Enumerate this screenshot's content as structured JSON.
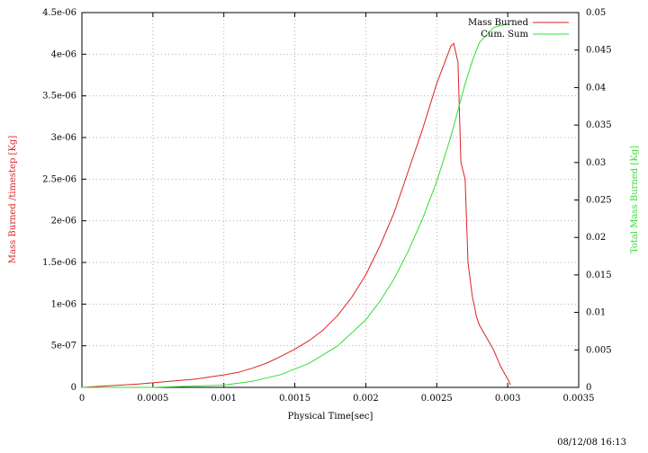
{
  "chart_data": {
    "type": "line",
    "xlabel": "Physical Time[sec]",
    "ylabel_left": "Mass Burned /timestep [Kg]",
    "ylabel_right": "Total Mass Burned [Kg]",
    "xlim": [
      0,
      0.0035
    ],
    "ylim_left": [
      0,
      4.5e-06
    ],
    "ylim_right": [
      0,
      0.05
    ],
    "xticks": [
      "0",
      "0.0005",
      "0.001",
      "0.0015",
      "0.002",
      "0.0025",
      "0.003",
      "0.0035"
    ],
    "yticks_left": [
      "0",
      "5e-07",
      "1e-06",
      "1.5e-06",
      "2e-06",
      "2.5e-06",
      "3e-06",
      "3.5e-06",
      "4e-06",
      "4.5e-06"
    ],
    "yticks_right": [
      "0",
      "0.005",
      "0.01",
      "0.015",
      "0.02",
      "0.025",
      "0.03",
      "0.035",
      "0.04",
      "0.045",
      "0.05"
    ],
    "grid": true,
    "legend_position": "top-right",
    "series": [
      {
        "name": "Mass Burned",
        "axis": "left",
        "color": "#dd2222",
        "x": [
          0.0,
          0.0002,
          0.0004,
          0.0006,
          0.0008,
          0.001,
          0.0011,
          0.0012,
          0.0013,
          0.0014,
          0.0015,
          0.0016,
          0.0017,
          0.0018,
          0.0019,
          0.002,
          0.0021,
          0.0022,
          0.0023,
          0.0024,
          0.0025,
          0.0026,
          0.00262,
          0.00265,
          0.00267,
          0.0027,
          0.00272,
          0.00275,
          0.00278,
          0.0028,
          0.00285,
          0.0029,
          0.00295,
          0.003,
          0.00302
        ],
        "values": [
          0.0,
          2e-08,
          4e-08,
          7e-08,
          1e-07,
          1.5e-07,
          1.8e-07,
          2.3e-07,
          2.9e-07,
          3.7e-07,
          4.6e-07,
          5.6e-07,
          6.9e-07,
          8.6e-07,
          1.08e-06,
          1.35e-06,
          1.7e-06,
          2.1e-06,
          2.6e-06,
          3.1e-06,
          3.65e-06,
          4.1e-06,
          4.13e-06,
          3.9e-06,
          2.7e-06,
          2.5e-06,
          1.5e-06,
          1.1e-06,
          8.5e-07,
          7.5e-07,
          6e-07,
          4.5e-07,
          2.5e-07,
          1e-07,
          3e-08
        ]
      },
      {
        "name": "Cum. Sum",
        "axis": "right",
        "color": "#33dd33",
        "x": [
          0.0,
          0.0005,
          0.001,
          0.0012,
          0.0014,
          0.0016,
          0.0018,
          0.002,
          0.0021,
          0.0022,
          0.0023,
          0.0024,
          0.0025,
          0.0026,
          0.00265,
          0.0027,
          0.00275,
          0.0028,
          0.0029,
          0.003
        ],
        "values": [
          0.0,
          0.0,
          0.0003,
          0.0008,
          0.0017,
          0.0032,
          0.0055,
          0.009,
          0.0115,
          0.0145,
          0.0182,
          0.0225,
          0.0275,
          0.0335,
          0.037,
          0.0405,
          0.0435,
          0.046,
          0.048,
          0.0485
        ]
      }
    ]
  },
  "timestamp": "08/12/08 16:13"
}
